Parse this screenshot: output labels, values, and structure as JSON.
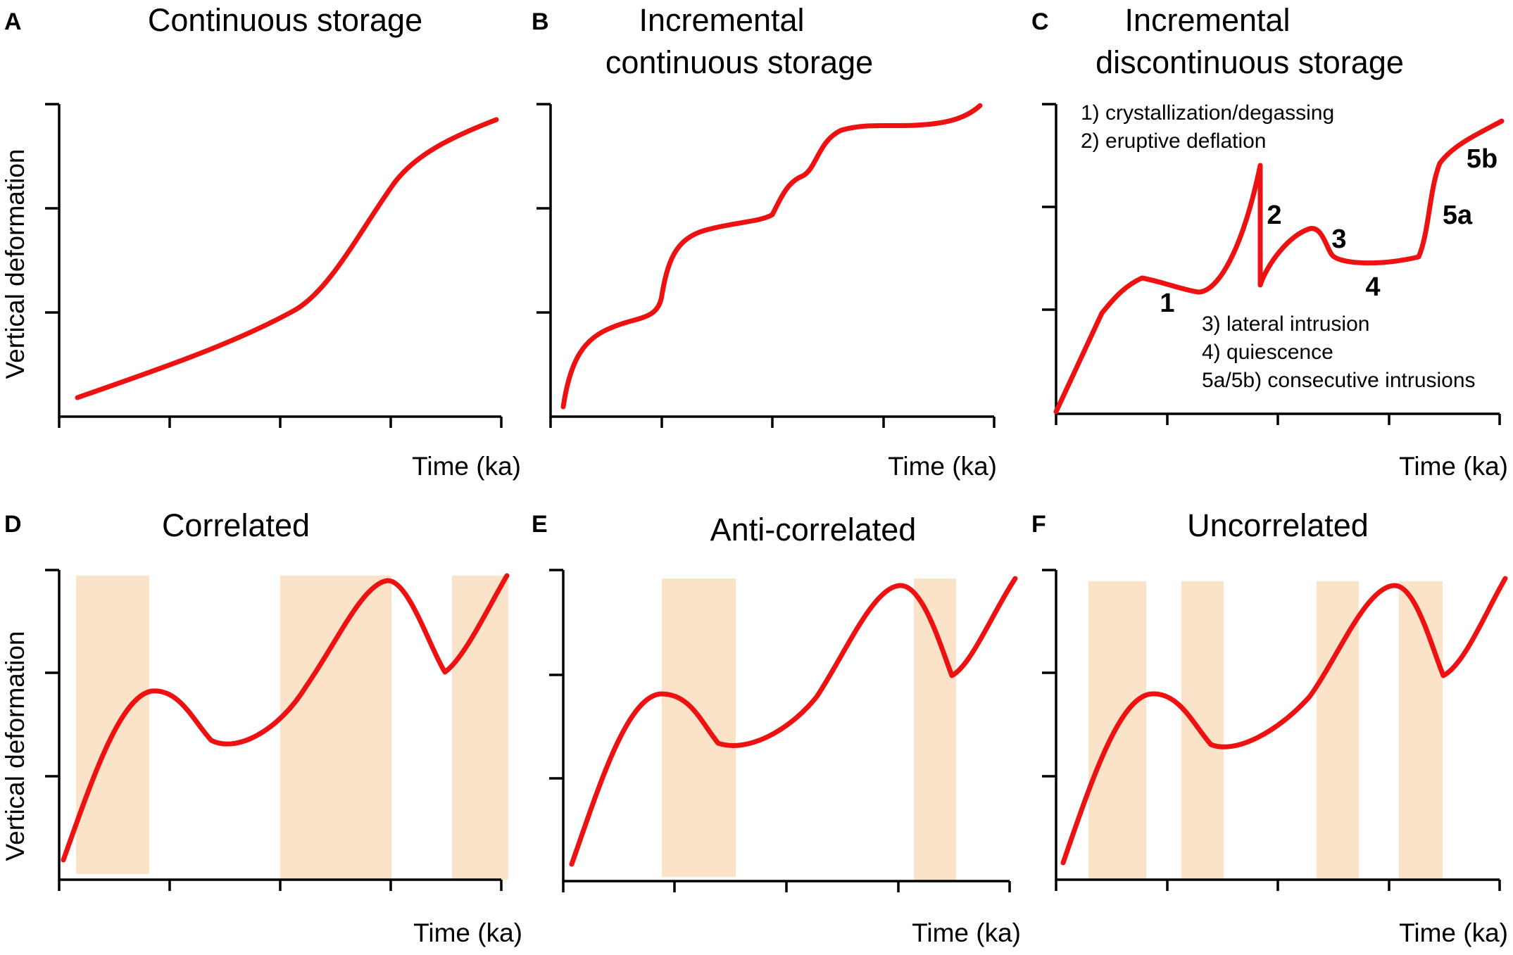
{
  "colors": {
    "curve": "#ee1111",
    "band": "#fae3c8",
    "axis": "#000000"
  },
  "axes": {
    "ylabel": "Vertical deformation",
    "xlabel": "Time (ka)"
  },
  "panels": [
    {
      "letter": "A",
      "title_lines": [
        "Continuous storage"
      ]
    },
    {
      "letter": "B",
      "title_lines": [
        "Incremental",
        "continuous storage"
      ]
    },
    {
      "letter": "C",
      "title_lines": [
        "Incremental",
        "discontinuous storage"
      ],
      "notes_top": [
        "1) crystallization/degassing",
        "2) eruptive deflation"
      ],
      "notes_bottom": [
        "3) lateral intrusion",
        "4) quiescence",
        "5a/5b) consecutive intrusions"
      ],
      "stages": [
        "1",
        "2",
        "3",
        "4",
        "5a",
        "5b"
      ]
    },
    {
      "letter": "D",
      "title_lines": [
        "Correlated"
      ]
    },
    {
      "letter": "E",
      "title_lines": [
        "Anti-correlated"
      ]
    },
    {
      "letter": "F",
      "title_lines": [
        "Uncorrelated"
      ]
    }
  ]
}
